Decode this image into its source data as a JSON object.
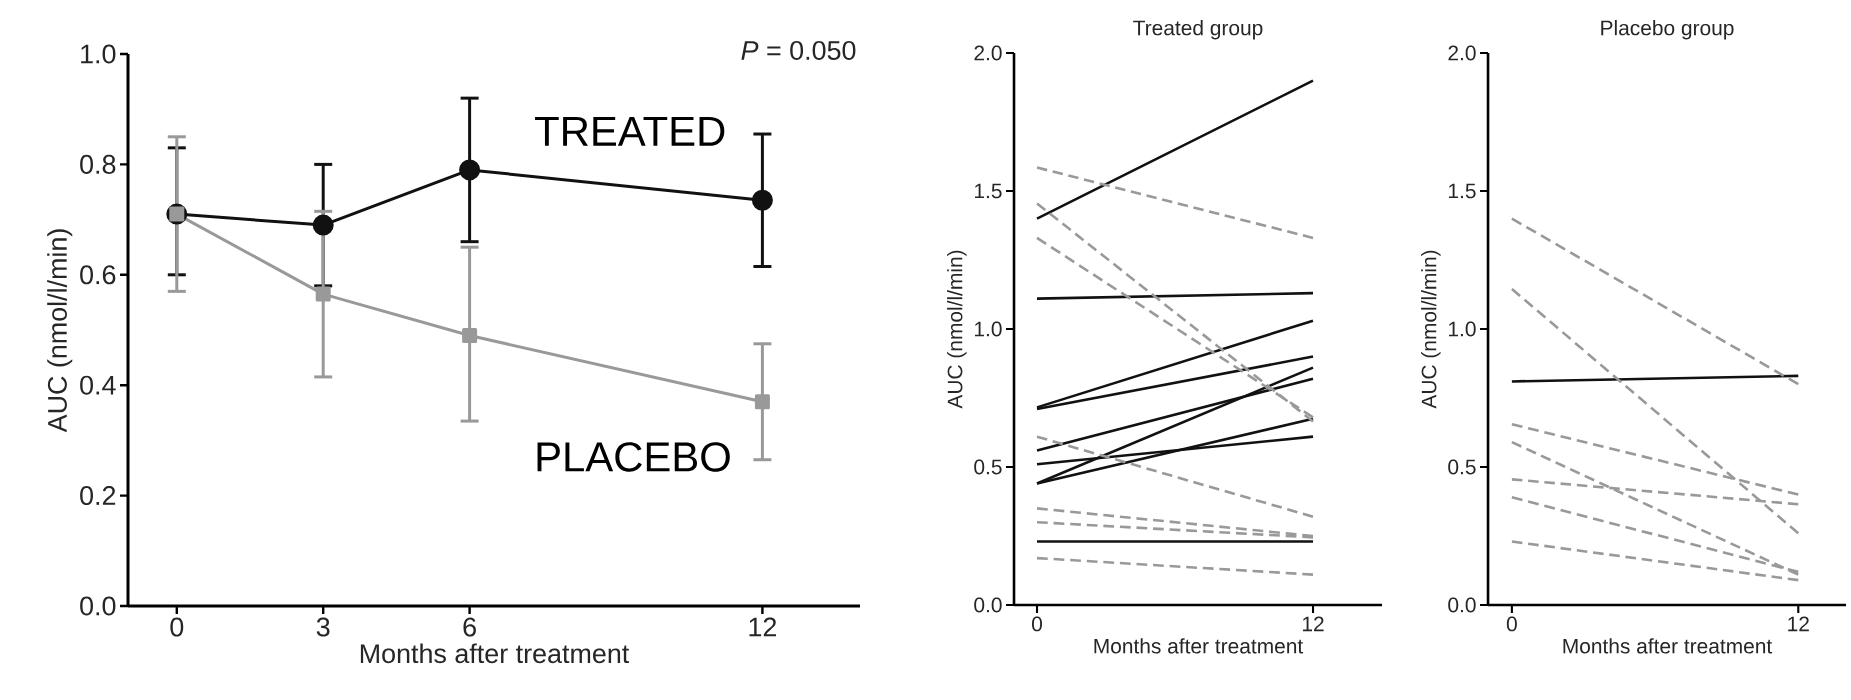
{
  "chart_data": [
    {
      "type": "line",
      "xlabel": "Months after treatment",
      "ylabel": "AUC (nmol/l/min)",
      "x": [
        0,
        3,
        6,
        12
      ],
      "xlim": [
        -1,
        14
      ],
      "xticks": [
        0,
        3,
        6,
        12
      ],
      "ylim": [
        0,
        1
      ],
      "yticks": [
        {
          "value": 0,
          "label": "0.0"
        },
        0.2,
        0.4,
        0.6,
        0.8,
        {
          "value": 1,
          "label": "1.0"
        }
      ],
      "series": [
        {
          "name": "TREATED",
          "color": "#111111",
          "marker": "circle",
          "line_style": "solid",
          "values": [
            0.71,
            0.69,
            0.79,
            0.735
          ],
          "errors": [
            [
              0.6,
              0.83
            ],
            0.11,
            [
              0.66,
              0.92
            ],
            [
              0.615,
              0.855
            ]
          ]
        },
        {
          "name": "PLACEBO",
          "color": "#999999",
          "marker": "square",
          "line_style": "solid",
          "values": [
            0.71,
            0.565,
            0.49,
            0.37
          ],
          "errors": [
            [
              0.57,
              0.85
            ],
            [
              0.415,
              0.715
            ],
            [
              0.335,
              0.65
            ],
            [
              0.265,
              0.475
            ]
          ]
        }
      ],
      "annotations": [
        "*P* = 0.050"
      ]
    },
    {
      "type": "line",
      "title": "Treated group",
      "xlabel": "Months after treatment",
      "ylabel": "AUC (nmol/l/min)",
      "x": [
        0,
        12
      ],
      "xlim": [
        -1,
        15
      ],
      "xticks": [
        0,
        12
      ],
      "ylim": [
        0,
        2
      ],
      "yticks": [
        {
          "value": 0,
          "label": "0.0"
        },
        0.5,
        {
          "value": 1,
          "label": "1.0"
        },
        1.5,
        {
          "value": 2,
          "label": "2.0"
        }
      ],
      "series": [
        {
          "color": "#111111",
          "line_style": "solid",
          "values": [
            1.4,
            1.9
          ]
        },
        {
          "color": "#111111",
          "line_style": "solid",
          "values": [
            1.11,
            1.13
          ]
        },
        {
          "color": "#111111",
          "line_style": "solid",
          "values": [
            0.716,
            1.03
          ]
        },
        {
          "color": "#111111",
          "line_style": "solid",
          "values": [
            0.71,
            0.9
          ]
        },
        {
          "color": "#111111",
          "line_style": "solid",
          "values": [
            0.56,
            0.82
          ]
        },
        {
          "color": "#111111",
          "line_style": "solid",
          "values": [
            0.44,
            0.86
          ]
        },
        {
          "color": "#111111",
          "line_style": "solid",
          "values": [
            0.51,
            0.61
          ]
        },
        {
          "color": "#111111",
          "line_style": "solid",
          "values": [
            0.44,
            0.675
          ]
        },
        {
          "color": "#111111",
          "line_style": "solid",
          "values": [
            0.23,
            0.23
          ]
        },
        {
          "color": "#999999",
          "line_style": "dashed",
          "values": [
            1.585,
            1.33
          ]
        },
        {
          "color": "#999999",
          "line_style": "dashed",
          "values": [
            1.455,
            0.665
          ]
        },
        {
          "color": "#999999",
          "line_style": "dashed",
          "values": [
            1.33,
            0.68
          ]
        },
        {
          "color": "#999999",
          "line_style": "dashed",
          "values": [
            0.61,
            0.32
          ]
        },
        {
          "color": "#999999",
          "line_style": "dashed",
          "values": [
            0.35,
            0.25
          ]
        },
        {
          "color": "#999999",
          "line_style": "dashed",
          "values": [
            0.3,
            0.245
          ]
        },
        {
          "color": "#999999",
          "line_style": "dashed",
          "values": [
            0.17,
            0.11
          ]
        }
      ]
    },
    {
      "type": "line",
      "title": "Placebo group",
      "xlabel": "Months after treatment",
      "ylabel": "AUC (nmol/l/min)",
      "x": [
        0,
        12
      ],
      "xlim": [
        -1,
        14
      ],
      "xticks": [
        0,
        12
      ],
      "ylim": [
        0,
        2
      ],
      "yticks": [
        {
          "value": 0,
          "label": "0.0"
        },
        0.5,
        {
          "value": 1,
          "label": "1.0"
        },
        1.5,
        {
          "value": 2,
          "label": "2.0"
        }
      ],
      "series": [
        {
          "color": "#111111",
          "line_style": "solid",
          "values": [
            0.81,
            0.83
          ]
        },
        {
          "color": "#999999",
          "line_style": "dashed",
          "values": [
            1.4,
            0.8
          ]
        },
        {
          "color": "#999999",
          "line_style": "dashed",
          "values": [
            1.145,
            0.26
          ]
        },
        {
          "color": "#999999",
          "line_style": "dashed",
          "values": [
            0.655,
            0.4
          ]
        },
        {
          "color": "#999999",
          "line_style": "dashed",
          "values": [
            0.59,
            0.11
          ]
        },
        {
          "color": "#999999",
          "line_style": "dashed",
          "values": [
            0.455,
            0.365
          ]
        },
        {
          "color": "#999999",
          "line_style": "dashed",
          "values": [
            0.39,
            0.12
          ]
        },
        {
          "color": "#999999",
          "line_style": "dashed",
          "values": [
            0.23,
            0.09
          ]
        }
      ]
    }
  ]
}
